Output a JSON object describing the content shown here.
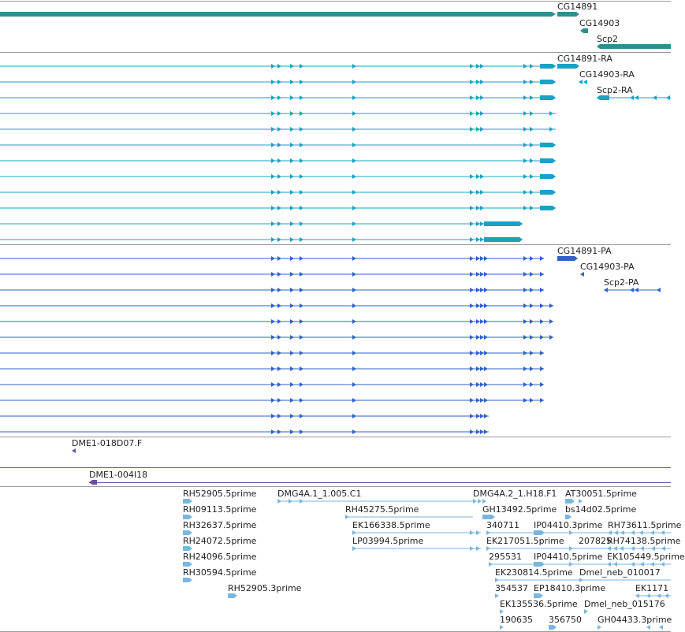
{
  "colors": {
    "gene": "#2f8f8f",
    "transcript_ra": "#1aa1c4",
    "transcript_pa": "#2e62c8",
    "est_track": "#6a4fa0",
    "est_feature": "#7ab6dd",
    "separator": "#9a9a9a"
  },
  "genes": [
    {
      "name": "CG14891"
    },
    {
      "name": "CG14903"
    },
    {
      "name": "Scp2"
    }
  ],
  "transcripts_ra": [
    {
      "name": "CG14891-RA"
    },
    {
      "name": "CG14903-RA"
    },
    {
      "name": "Scp2-RA"
    }
  ],
  "transcripts_pa": [
    {
      "name": "CG14891-PA"
    },
    {
      "name": "CG14903-PA"
    },
    {
      "name": "Scp2-PA"
    }
  ],
  "clones": [
    {
      "name": "DME1-018D07.F"
    },
    {
      "name": "DME1-004I18"
    }
  ],
  "ests": [
    {
      "name": "RH52905.5prime"
    },
    {
      "name": "RH09113.5prime"
    },
    {
      "name": "RH32637.5prime"
    },
    {
      "name": "RH24072.5prime"
    },
    {
      "name": "RH24096.5prime"
    },
    {
      "name": "RH30594.5prime"
    },
    {
      "name": "RH52905.3prime"
    },
    {
      "name": "DMG4A.1_1.005.C1"
    },
    {
      "name": "RH45275.5prime"
    },
    {
      "name": "EK166338.5prime"
    },
    {
      "name": "LP03994.5prime"
    },
    {
      "name": "DMG4A.2_1.H18.F1"
    },
    {
      "name": "AT30051.5prime"
    },
    {
      "name": "GH13492.5prime"
    },
    {
      "name": "bs14d02.5prime"
    },
    {
      "name": "340711"
    },
    {
      "name": "IP04410.3prime"
    },
    {
      "name": "RH73611.5prime"
    },
    {
      "name": "EK217051.5prime"
    },
    {
      "name": "207825"
    },
    {
      "name": "RH74138.5prime"
    },
    {
      "name": "295531"
    },
    {
      "name": "IP04410.5prime"
    },
    {
      "name": "EK105449.5prime"
    },
    {
      "name": "EK230814.5prime"
    },
    {
      "name": "Dmel_neb_010017"
    },
    {
      "name": "354537"
    },
    {
      "name": "EP18410.3prime"
    },
    {
      "name": "EK1171"
    },
    {
      "name": "EK135536.5prime"
    },
    {
      "name": "Dmel_neb_015176"
    },
    {
      "name": "190635"
    },
    {
      "name": "356750"
    },
    {
      "name": "GH04433.3prime"
    }
  ]
}
